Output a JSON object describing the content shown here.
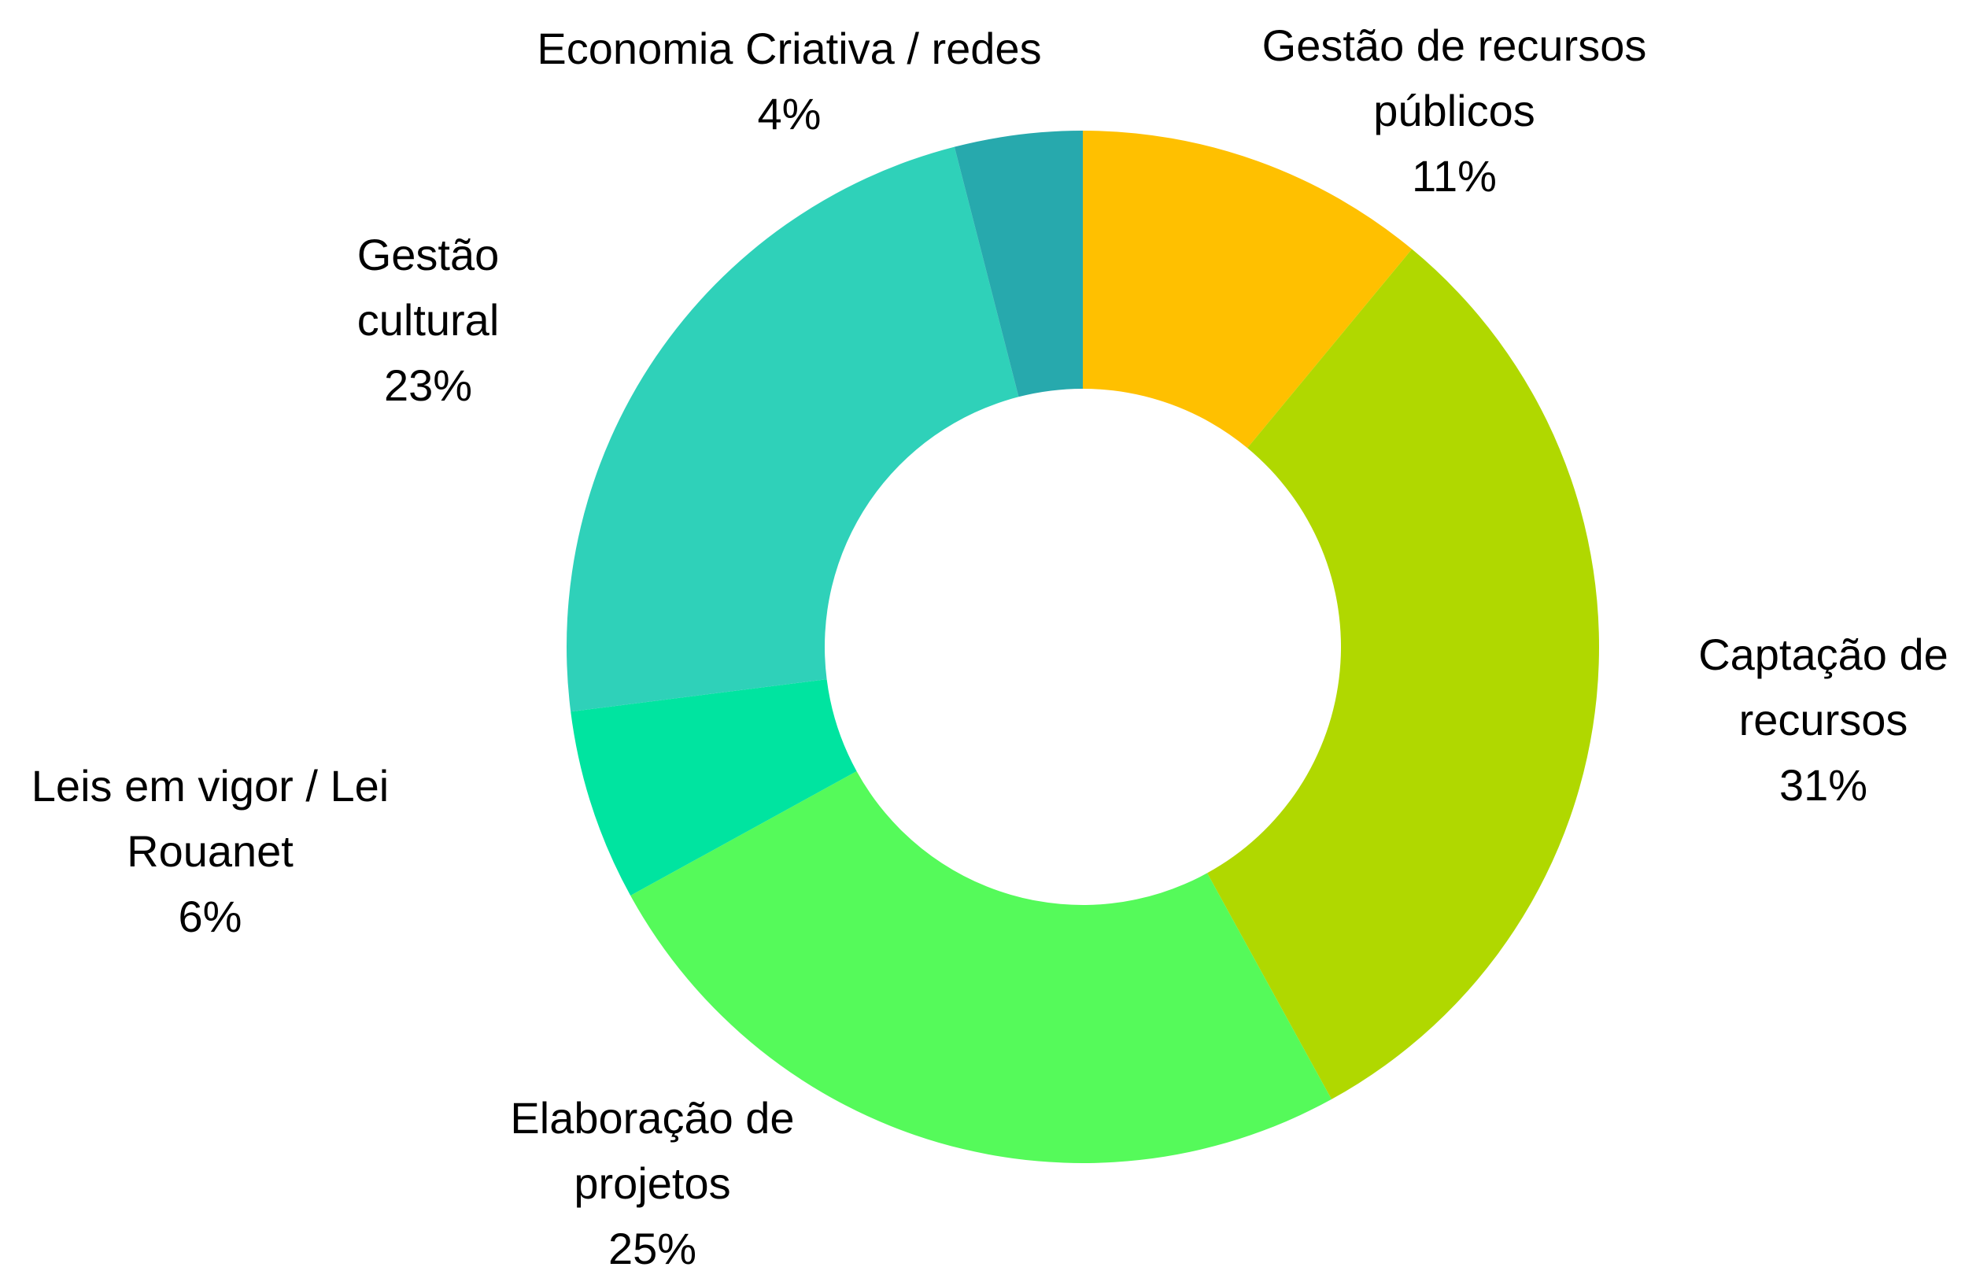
{
  "chart_data": {
    "type": "donut",
    "categories": [
      "Gestão de recursos públicos",
      "Captação de recursos",
      "Elaboração de projetos",
      "Leis em vigor / Lei Rouanet",
      "Gestão cultural",
      "Economia Criativa / redes"
    ],
    "values": [
      11,
      31,
      25,
      6,
      23,
      4
    ],
    "value_labels": [
      "11%",
      "31%",
      "25%",
      "6%",
      "23%",
      "4%"
    ],
    "colors": [
      "#FFC000",
      "#B0D800",
      "#55FA5A",
      "#00E4A0",
      "#2FD1B9",
      "#27A9AD"
    ]
  }
}
